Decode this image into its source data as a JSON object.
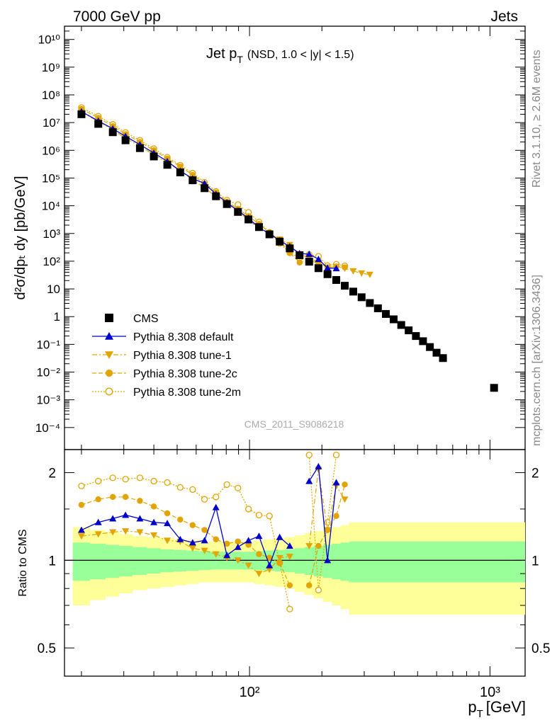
{
  "header": {
    "left": "7000 GeV pp",
    "right": "Jets"
  },
  "side_labels": {
    "rivet": "Rivet 3.1.10, ≥ 2.6M events",
    "mcplots": "mcplots.cern.ch [arXiv:1306.3436]"
  },
  "watermark": "CMS_2011_S9086218",
  "colors": {
    "cms": "#000000",
    "default": "#0000cc",
    "tune": "#e2a400",
    "band_inner": "#99ff99",
    "band_outer": "#ffff99"
  },
  "chart_data": [
    {
      "type": "scatter",
      "title_main": "Jet p",
      "title_sub": "T",
      "title_cond": "(NSD, 1.0 < |y| < 1.5)",
      "ylabel": "d²σ/dpₜ dy [pb/GeV]",
      "xscale": "log",
      "yscale": "log",
      "xlim": [
        17,
        1400
      ],
      "ylim": [
        1.6e-05,
        30000000000.0
      ],
      "legend_position": "bottom-left",
      "x": [
        20,
        23.5,
        27,
        30.5,
        35,
        40,
        45.5,
        51.5,
        58,
        65,
        72.5,
        80.5,
        89.5,
        99,
        109.5,
        121,
        133.5,
        147,
        161.5,
        177,
        193.5,
        211,
        229.5,
        249,
        270,
        292.5,
        316.5,
        342,
        369,
        397.5,
        427.5,
        459,
        492,
        526.5,
        562.5,
        599.5,
        637.5,
        1040
      ],
      "series": [
        {
          "name": "CMS",
          "style": "square",
          "values": [
            20000000.0,
            9000000.0,
            4500000.0,
            2300000.0,
            1200000.0,
            600000.0,
            300000.0,
            160000.0,
            83000.0,
            43000.0,
            22000.0,
            11500.0,
            6000.0,
            3200.0,
            1700.0,
            930,
            510,
            290,
            165,
            96,
            56,
            34,
            21,
            13,
            8.0,
            5.0,
            3.1,
            2.0,
            1.25,
            0.8,
            0.5,
            0.32,
            0.2,
            0.13,
            0.08,
            0.05,
            0.032,
            0.0027
          ]
        },
        {
          "name": "Pythia 8.308 default",
          "style": "triangle-up",
          "values": [
            25000000.0,
            11500000.0,
            6000000.0,
            3200000.0,
            1600000.0,
            800000.0,
            400000.0,
            180000.0,
            95000.0,
            64000.0,
            26000.0,
            13000.0,
            6600.0,
            3600.0,
            1600.0,
            1000.0,
            550,
            340,
            190,
            180,
            118,
            57,
            55
          ]
        },
        {
          "name": "Pythia 8.308 tune-1",
          "style": "triangle-down",
          "values": [
            24000000.0,
            11000000.0,
            5500000.0,
            2700000.0,
            1400000.0,
            700000.0,
            350000.0,
            185000.0,
            85000.0,
            45000.0,
            21000.0,
            12000.0,
            6500.0,
            3000.0,
            1600.0,
            920,
            620,
            390,
            180,
            130,
            90,
            60,
            64,
            55,
            44,
            37,
            33
          ]
        },
        {
          "name": "Pythia 8.308 tune-2c",
          "style": "circle",
          "values": [
            31000000.0,
            14800000.0,
            7400000.0,
            3800000.0,
            2000000.0,
            1000000.0,
            500000.0,
            260000.0,
            130000.0,
            62000.0,
            30000.0,
            14000.0,
            7800.0,
            4200.0,
            2200.0,
            1080.0,
            570,
            200,
            90,
            105,
            85,
            60,
            64,
            60
          ]
        },
        {
          "name": "Pythia 8.308 tune-2m",
          "style": "circle-open",
          "values": [
            35000000.0,
            17000000.0,
            8600000.0,
            4400000.0,
            2300000.0,
            1150000.0,
            560000.0,
            290000.0,
            150000.0,
            70000.0,
            33000.0,
            16000.0,
            11000.0,
            5800.0,
            2600.0,
            1100.0,
            440,
            200,
            130,
            175,
            150,
            70,
            78,
            68
          ]
        }
      ]
    },
    {
      "type": "scatter",
      "ylabel": "Ratio to CMS",
      "xlabel": "p_T [GeV]",
      "xscale": "log",
      "yscale": "log",
      "xlim": [
        17,
        1400
      ],
      "ylim": [
        0.4,
        2.4
      ],
      "x": [
        20,
        23.5,
        27,
        30.5,
        35,
        40,
        45.5,
        51.5,
        58,
        65,
        72.5,
        80.5,
        89.5,
        99,
        109.5,
        121,
        133.5,
        147,
        161.5,
        177,
        193.5,
        211,
        229.5,
        249,
        270
      ],
      "band_inner_halfwidth": [
        0.15,
        0.14,
        0.13,
        0.12,
        0.11,
        0.1,
        0.09,
        0.085,
        0.08,
        0.075,
        0.07,
        0.07,
        0.07,
        0.07,
        0.075,
        0.08,
        0.085,
        0.09,
        0.1,
        0.11,
        0.12,
        0.13,
        0.14,
        0.15,
        0.16
      ],
      "band_outer_halfwidth": [
        0.3,
        0.27,
        0.25,
        0.23,
        0.21,
        0.2,
        0.19,
        0.18,
        0.17,
        0.16,
        0.16,
        0.16,
        0.16,
        0.16,
        0.17,
        0.18,
        0.19,
        0.2,
        0.22,
        0.24,
        0.26,
        0.28,
        0.3,
        0.32,
        0.35
      ],
      "series": [
        {
          "name": "Pythia 8.308 default",
          "values": [
            1.27,
            1.35,
            1.39,
            1.43,
            1.39,
            1.35,
            1.34,
            1.18,
            1.15,
            1.17,
            1.52,
            1.04,
            1.11,
            1.17,
            1.21,
            0.96,
            1.2,
            1.12,
            null,
            1.87,
            2.1,
            1.0,
            1.85
          ]
        },
        {
          "name": "Pythia 8.308 tune-1",
          "values": [
            1.21,
            1.23,
            1.25,
            1.26,
            1.25,
            1.22,
            1.17,
            1.16,
            1.1,
            1.08,
            1.05,
            1.02,
            1.0,
            0.96,
            0.9,
            0.93,
            1.02,
            1.03,
            null,
            1.12,
            2.05,
            1.27,
            1.8,
            1.62
          ]
        },
        {
          "name": "Pythia 8.308 tune-2c",
          "values": [
            1.55,
            1.62,
            1.65,
            1.65,
            1.6,
            1.53,
            1.45,
            1.38,
            1.32,
            1.27,
            1.18,
            1.14,
            1.16,
            1.13,
            1.05,
            1.02,
            0.98,
            0.82,
            null,
            0.82,
            1.12,
            1.27,
            1.42,
            1.82
          ]
        },
        {
          "name": "Pythia 8.308 tune-2m",
          "values": [
            1.8,
            1.87,
            1.92,
            1.9,
            1.92,
            1.87,
            1.85,
            1.78,
            1.75,
            1.62,
            1.65,
            1.82,
            1.77,
            1.5,
            1.43,
            1.42,
            0.98,
            0.68,
            null,
            2.3,
            0.79,
            1.35,
            2.3
          ]
        }
      ]
    }
  ],
  "main_axis": {
    "y_ticks": [
      "10⁻⁴",
      "10⁻³",
      "10⁻²",
      "10⁻¹",
      "1",
      "10",
      "10²",
      "10³",
      "10⁴",
      "10⁵",
      "10⁶",
      "10⁷",
      "10⁸",
      "10⁹",
      "10¹⁰"
    ],
    "y_tick_exps": [
      -4,
      -3,
      -2,
      -1,
      0,
      1,
      2,
      3,
      4,
      5,
      6,
      7,
      8,
      9,
      10
    ]
  },
  "ratio_axis": {
    "y_ticks": [
      "0.5",
      "1",
      "2"
    ],
    "y_tick_values": [
      0.5,
      1,
      2
    ]
  },
  "x_axis": {
    "major_labels": [
      "10²",
      "10³"
    ],
    "major_values": [
      100,
      1000
    ],
    "xlabel_main": "p",
    "xlabel_sub": "T",
    "xlabel_unit": "[GeV]"
  }
}
